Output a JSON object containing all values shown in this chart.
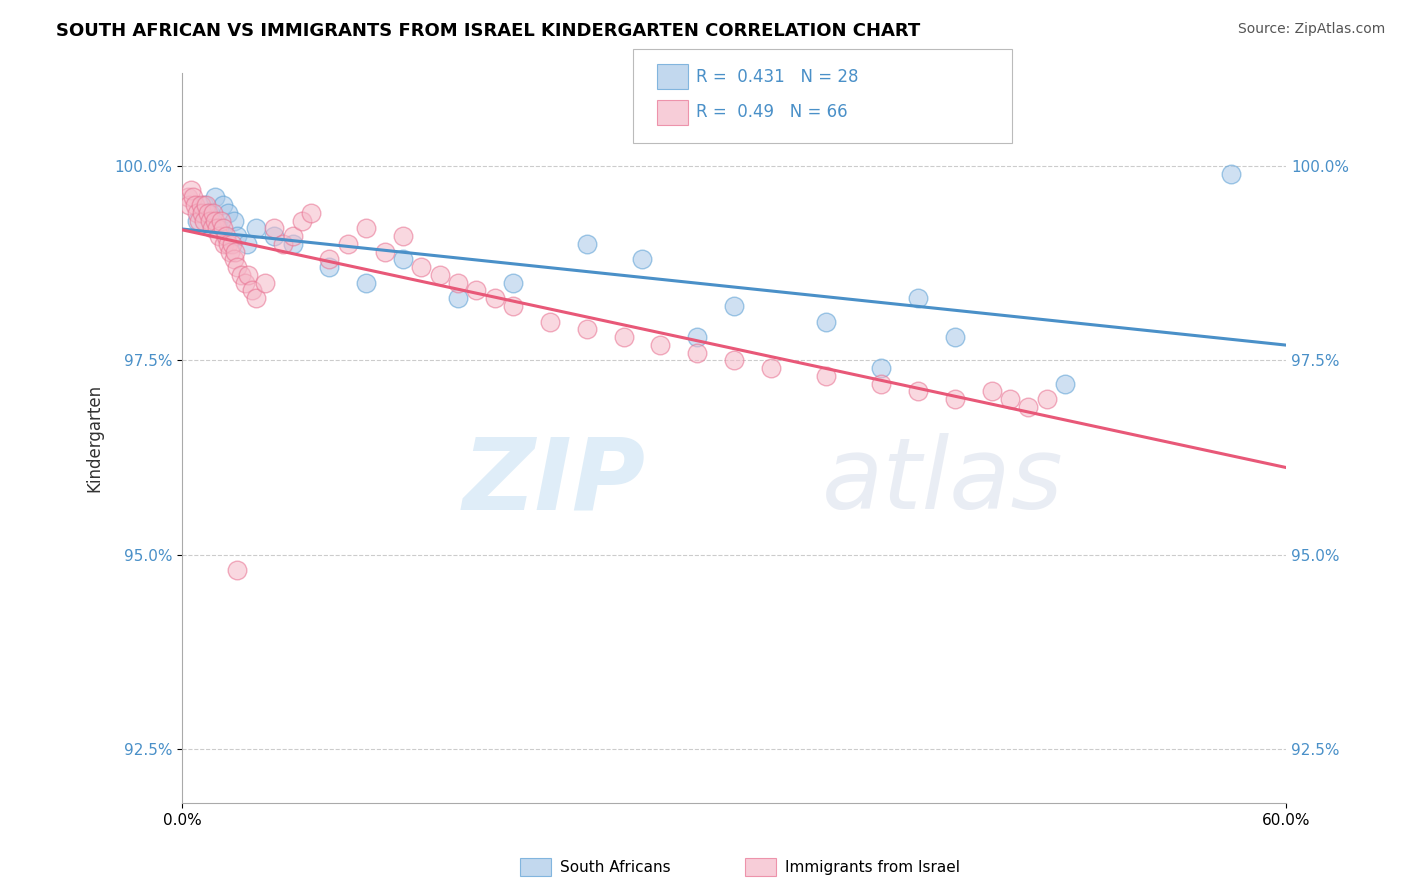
{
  "title": "SOUTH AFRICAN VS IMMIGRANTS FROM ISRAEL KINDERGARTEN CORRELATION CHART",
  "source": "Source: ZipAtlas.com",
  "ylabel": "Kindergarten",
  "y_ticks": [
    92.5,
    95.0,
    97.5,
    100.0
  ],
  "y_tick_labels": [
    "92.5%",
    "95.0%",
    "97.5%",
    "100.0%"
  ],
  "x_lim": [
    0.0,
    60.0
  ],
  "y_lim": [
    91.8,
    101.2
  ],
  "blue_R": 0.431,
  "blue_N": 28,
  "pink_R": 0.49,
  "pink_N": 66,
  "legend_label_blue": "South Africans",
  "legend_label_pink": "Immigrants from Israel",
  "watermark_zip": "ZIP",
  "watermark_atlas": "atlas",
  "blue_color": "#a8c8e8",
  "pink_color": "#f5b8c8",
  "blue_edge_color": "#5a9fd4",
  "pink_edge_color": "#e87090",
  "blue_line_color": "#4a90c8",
  "pink_line_color": "#e85878",
  "background_color": "#ffffff",
  "grid_color": "#cccccc",
  "title_color": "#000000",
  "blue_scatter_x": [
    0.8,
    1.2,
    1.5,
    1.8,
    2.0,
    2.2,
    2.5,
    2.8,
    3.0,
    3.5,
    4.0,
    5.0,
    6.0,
    8.0,
    10.0,
    12.0,
    15.0,
    18.0,
    22.0,
    25.0,
    28.0,
    30.0,
    35.0,
    38.0,
    40.0,
    42.0,
    48.0,
    57.0
  ],
  "blue_scatter_y": [
    99.3,
    99.5,
    99.4,
    99.6,
    99.2,
    99.5,
    99.4,
    99.3,
    99.1,
    99.0,
    99.2,
    99.1,
    99.0,
    98.7,
    98.5,
    98.8,
    98.3,
    98.5,
    99.0,
    98.8,
    97.8,
    98.2,
    98.0,
    97.4,
    98.3,
    97.8,
    97.2,
    99.9
  ],
  "pink_scatter_x": [
    0.3,
    0.4,
    0.5,
    0.6,
    0.7,
    0.8,
    0.9,
    1.0,
    1.1,
    1.2,
    1.3,
    1.4,
    1.5,
    1.6,
    1.7,
    1.8,
    1.9,
    2.0,
    2.1,
    2.2,
    2.3,
    2.4,
    2.5,
    2.6,
    2.7,
    2.8,
    2.9,
    3.0,
    3.2,
    3.4,
    3.6,
    3.8,
    4.0,
    4.5,
    5.0,
    5.5,
    6.0,
    6.5,
    7.0,
    8.0,
    9.0,
    10.0,
    11.0,
    12.0,
    13.0,
    14.0,
    15.0,
    16.0,
    17.0,
    18.0,
    20.0,
    22.0,
    24.0,
    26.0,
    28.0,
    30.0,
    32.0,
    35.0,
    38.0,
    40.0,
    42.0,
    44.0,
    45.0,
    46.0,
    47.0,
    3.0
  ],
  "pink_scatter_y": [
    99.6,
    99.5,
    99.7,
    99.6,
    99.5,
    99.4,
    99.3,
    99.5,
    99.4,
    99.3,
    99.5,
    99.4,
    99.3,
    99.2,
    99.4,
    99.3,
    99.2,
    99.1,
    99.3,
    99.2,
    99.0,
    99.1,
    99.0,
    98.9,
    99.0,
    98.8,
    98.9,
    98.7,
    98.6,
    98.5,
    98.6,
    98.4,
    98.3,
    98.5,
    99.2,
    99.0,
    99.1,
    99.3,
    99.4,
    98.8,
    99.0,
    99.2,
    98.9,
    99.1,
    98.7,
    98.6,
    98.5,
    98.4,
    98.3,
    98.2,
    98.0,
    97.9,
    97.8,
    97.7,
    97.6,
    97.5,
    97.4,
    97.3,
    97.2,
    97.1,
    97.0,
    97.1,
    97.0,
    96.9,
    97.0,
    94.8
  ]
}
